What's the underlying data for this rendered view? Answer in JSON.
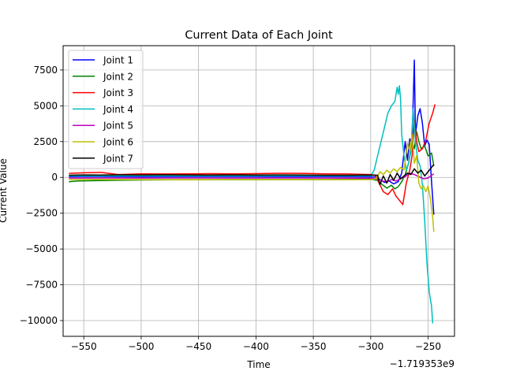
{
  "chart_data": {
    "type": "line",
    "title": "Current Data of Each Joint",
    "xlabel": "Time",
    "ylabel": "Current Value",
    "x_offset_label": "−1.719353e9",
    "xlim": [
      -568,
      -227
    ],
    "ylim": [
      -11100,
      9200
    ],
    "x_ticks": [
      -550,
      -500,
      -450,
      -400,
      -350,
      -300,
      -250
    ],
    "x_tick_labels": [
      "−550",
      "−500",
      "−450",
      "−400",
      "−350",
      "−300",
      "−250"
    ],
    "y_ticks": [
      -10000,
      -7500,
      -5000,
      -2500,
      0,
      2500,
      5000,
      7500
    ],
    "y_tick_labels": [
      "−10000",
      "−7500",
      "−5000",
      "−2500",
      "0",
      "2500",
      "5000",
      "7500"
    ],
    "grid": true,
    "legend_position": "top-left",
    "series": [
      {
        "name": "Joint 1",
        "color": "#0000ff",
        "points": [
          [
            -563,
            50
          ],
          [
            -540,
            60
          ],
          [
            -500,
            40
          ],
          [
            -460,
            55
          ],
          [
            -420,
            50
          ],
          [
            -380,
            45
          ],
          [
            -340,
            50
          ],
          [
            -300,
            40
          ],
          [
            -295,
            30
          ],
          [
            -292,
            -150
          ],
          [
            -288,
            -350
          ],
          [
            -284,
            -250
          ],
          [
            -280,
            -450
          ],
          [
            -276,
            -300
          ],
          [
            -273,
            300
          ],
          [
            -270,
            2500
          ],
          [
            -268,
            1200
          ],
          [
            -266,
            2700
          ],
          [
            -264,
            2400
          ],
          [
            -262,
            8200
          ],
          [
            -261,
            3000
          ],
          [
            -259,
            4300
          ],
          [
            -257,
            4800
          ],
          [
            -255,
            3800
          ],
          [
            -253,
            2200
          ],
          [
            -251,
            2600
          ],
          [
            -249,
            2300
          ],
          [
            -247,
            -300
          ],
          [
            -245,
            -2600
          ]
        ]
      },
      {
        "name": "Joint 2",
        "color": "#008000",
        "points": [
          [
            -563,
            -300
          ],
          [
            -555,
            -250
          ],
          [
            -540,
            -230
          ],
          [
            -520,
            -200
          ],
          [
            -500,
            -180
          ],
          [
            -460,
            -160
          ],
          [
            -420,
            -160
          ],
          [
            -380,
            -150
          ],
          [
            -340,
            -150
          ],
          [
            -300,
            -130
          ],
          [
            -294,
            -200
          ],
          [
            -290,
            -500
          ],
          [
            -286,
            -750
          ],
          [
            -282,
            -550
          ],
          [
            -279,
            -800
          ],
          [
            -276,
            -650
          ],
          [
            -273,
            -300
          ],
          [
            -270,
            200
          ],
          [
            -267,
            1000
          ],
          [
            -264,
            2500
          ],
          [
            -262,
            2000
          ],
          [
            -260,
            3200
          ],
          [
            -258,
            2500
          ],
          [
            -256,
            2000
          ],
          [
            -253,
            2200
          ],
          [
            -250,
            1500
          ],
          [
            -247,
            1700
          ],
          [
            -245,
            800
          ]
        ]
      },
      {
        "name": "Joint 3",
        "color": "#ff0000",
        "points": [
          [
            -563,
            280
          ],
          [
            -550,
            320
          ],
          [
            -535,
            350
          ],
          [
            -520,
            200
          ],
          [
            -500,
            250
          ],
          [
            -480,
            240
          ],
          [
            -460,
            250
          ],
          [
            -440,
            260
          ],
          [
            -420,
            250
          ],
          [
            -400,
            260
          ],
          [
            -380,
            290
          ],
          [
            -360,
            280
          ],
          [
            -340,
            250
          ],
          [
            -320,
            240
          ],
          [
            -300,
            200
          ],
          [
            -296,
            150
          ],
          [
            -293,
            -350
          ],
          [
            -289,
            -1000
          ],
          [
            -285,
            -1200
          ],
          [
            -281,
            -800
          ],
          [
            -278,
            -1300
          ],
          [
            -275,
            -1600
          ],
          [
            -272,
            -1900
          ],
          [
            -269,
            -400
          ],
          [
            -266,
            500
          ],
          [
            -264,
            1500
          ],
          [
            -262,
            4000
          ],
          [
            -260,
            2500
          ],
          [
            -258,
            1800
          ],
          [
            -255,
            2000
          ],
          [
            -252,
            2600
          ],
          [
            -249,
            3800
          ],
          [
            -246,
            4500
          ],
          [
            -244,
            5100
          ]
        ]
      },
      {
        "name": "Joint 4",
        "color": "#00bfbf",
        "points": [
          [
            -563,
            100
          ],
          [
            -540,
            100
          ],
          [
            -500,
            110
          ],
          [
            -460,
            100
          ],
          [
            -420,
            100
          ],
          [
            -380,
            110
          ],
          [
            -340,
            100
          ],
          [
            -300,
            100
          ],
          [
            -297,
            500
          ],
          [
            -294,
            1500
          ],
          [
            -291,
            2500
          ],
          [
            -288,
            3500
          ],
          [
            -285,
            4500
          ],
          [
            -282,
            5000
          ],
          [
            -279,
            5300
          ],
          [
            -277,
            6300
          ],
          [
            -276,
            5800
          ],
          [
            -275,
            6400
          ],
          [
            -274,
            5500
          ],
          [
            -273,
            3000
          ],
          [
            -271,
            1500
          ],
          [
            -269,
            500
          ],
          [
            -267,
            1000
          ],
          [
            -265,
            1800
          ],
          [
            -263,
            4800
          ],
          [
            -261,
            2500
          ],
          [
            -259,
            1200
          ],
          [
            -257,
            800
          ],
          [
            -255,
            -500
          ],
          [
            -253,
            -3000
          ],
          [
            -251,
            -6000
          ],
          [
            -249,
            -8000
          ],
          [
            -247,
            -9000
          ],
          [
            -246,
            -10200
          ]
        ]
      },
      {
        "name": "Joint 5",
        "color": "#bf00bf",
        "points": [
          [
            -563,
            -50
          ],
          [
            -540,
            -40
          ],
          [
            -500,
            -50
          ],
          [
            -460,
            -40
          ],
          [
            -420,
            -50
          ],
          [
            -380,
            -40
          ],
          [
            -340,
            -50
          ],
          [
            -300,
            -60
          ],
          [
            -294,
            -100
          ],
          [
            -290,
            -250
          ],
          [
            -286,
            -300
          ],
          [
            -282,
            -150
          ],
          [
            -278,
            -250
          ],
          [
            -274,
            -100
          ],
          [
            -270,
            50
          ],
          [
            -266,
            300
          ],
          [
            -262,
            200
          ],
          [
            -258,
            50
          ],
          [
            -254,
            -100
          ],
          [
            -250,
            -50
          ],
          [
            -247,
            150
          ],
          [
            -245,
            250
          ]
        ]
      },
      {
        "name": "Joint 6",
        "color": "#bfbf00",
        "points": [
          [
            -563,
            -150
          ],
          [
            -540,
            -140
          ],
          [
            -500,
            -150
          ],
          [
            -460,
            -160
          ],
          [
            -420,
            -150
          ],
          [
            -380,
            -150
          ],
          [
            -340,
            -160
          ],
          [
            -300,
            -150
          ],
          [
            -295,
            -100
          ],
          [
            -292,
            400
          ],
          [
            -289,
            200
          ],
          [
            -286,
            500
          ],
          [
            -283,
            300
          ],
          [
            -280,
            600
          ],
          [
            -277,
            400
          ],
          [
            -274,
            700
          ],
          [
            -271,
            500
          ],
          [
            -268,
            2400
          ],
          [
            -266,
            1800
          ],
          [
            -264,
            3000
          ],
          [
            -262,
            1000
          ],
          [
            -260,
            1500
          ],
          [
            -258,
            -400
          ],
          [
            -256,
            -800
          ],
          [
            -254,
            -600
          ],
          [
            -252,
            -1000
          ],
          [
            -250,
            -600
          ],
          [
            -248,
            -1500
          ],
          [
            -246,
            -2800
          ],
          [
            -245,
            -3800
          ]
        ]
      },
      {
        "name": "Joint 7",
        "color": "#000000",
        "points": [
          [
            -563,
            150
          ],
          [
            -550,
            170
          ],
          [
            -535,
            160
          ],
          [
            -520,
            180
          ],
          [
            -500,
            170
          ],
          [
            -480,
            180
          ],
          [
            -460,
            170
          ],
          [
            -440,
            160
          ],
          [
            -420,
            170
          ],
          [
            -400,
            160
          ],
          [
            -380,
            170
          ],
          [
            -360,
            160
          ],
          [
            -340,
            150
          ],
          [
            -320,
            150
          ],
          [
            -300,
            160
          ],
          [
            -294,
            150
          ],
          [
            -292,
            -500
          ],
          [
            -289,
            100
          ],
          [
            -286,
            -400
          ],
          [
            -283,
            200
          ],
          [
            -280,
            -200
          ],
          [
            -277,
            300
          ],
          [
            -274,
            -100
          ],
          [
            -271,
            100
          ],
          [
            -268,
            300
          ],
          [
            -265,
            200
          ],
          [
            -262,
            600
          ],
          [
            -259,
            300
          ],
          [
            -256,
            500
          ],
          [
            -253,
            100
          ],
          [
            -250,
            400
          ],
          [
            -247,
            700
          ],
          [
            -245,
            900
          ]
        ]
      }
    ]
  }
}
